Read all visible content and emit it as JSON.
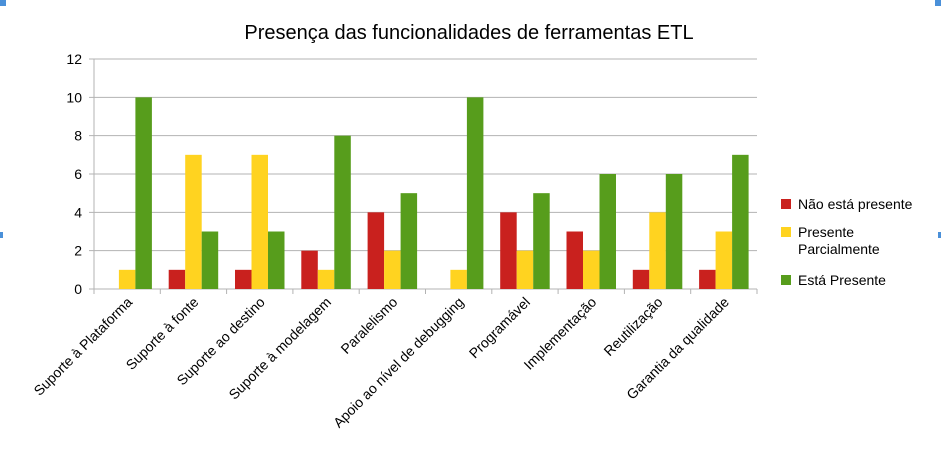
{
  "chart_data": {
    "type": "bar",
    "title": "Presença das funcionalidades de ferramentas ETL",
    "xlabel": "",
    "ylabel": "",
    "ylim": [
      0,
      12
    ],
    "yticks": [
      0,
      2,
      4,
      6,
      8,
      10,
      12
    ],
    "grid": true,
    "legend_position": "right",
    "categories": [
      "Suporte à Plataforma",
      "Suporte à fonte",
      "Suporte ao destino",
      "Suporte à modelagem",
      "Paralelismo",
      "Apoio ao nível de debugging",
      "Programável",
      "Implementação",
      "Reutilização",
      "Garantia da qualidade"
    ],
    "series": [
      {
        "name": "Não está presente",
        "color": "#c9211e",
        "values": [
          0,
          1,
          1,
          2,
          4,
          0,
          4,
          3,
          1,
          1
        ]
      },
      {
        "name": "Presente Parcialmente",
        "legend_lines": [
          "Presente",
          "Parcialmente"
        ],
        "color": "#ffd320",
        "values": [
          1,
          7,
          7,
          1,
          2,
          1,
          2,
          2,
          4,
          3
        ]
      },
      {
        "name": "Está Presente",
        "color": "#579d1c",
        "values": [
          10,
          3,
          3,
          8,
          5,
          10,
          5,
          6,
          6,
          7
        ]
      }
    ]
  }
}
